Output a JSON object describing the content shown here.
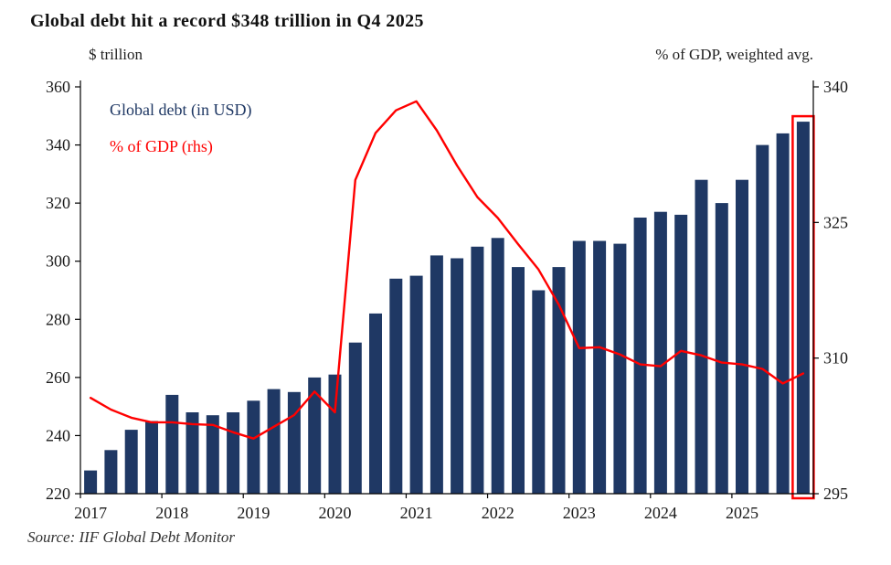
{
  "title": "Global debt hit a record $348 trillion in Q4 2025",
  "left_axis_label": "$ trillion",
  "right_axis_label": "% of GDP, weighted avg.",
  "legend": {
    "bars": "Global debt (in USD)",
    "line": "% of GDP (rhs)"
  },
  "source": "Source: IIF Global Debt Monitor",
  "colors": {
    "bar": "#1F3864",
    "line": "#FF0000",
    "highlight": "#FF0000",
    "axis": "#000000",
    "tick_text": "#1a1a1a"
  },
  "chart_data": {
    "type": "bar",
    "subtype": "bar+line combo, dual axis",
    "title": "Global debt hit a record $348 trillion in Q4 2025",
    "periods": [
      "2017Q1",
      "2017Q2",
      "2017Q3",
      "2017Q4",
      "2018Q1",
      "2018Q2",
      "2018Q3",
      "2018Q4",
      "2019Q1",
      "2019Q2",
      "2019Q3",
      "2019Q4",
      "2020Q1",
      "2020Q2",
      "2020Q3",
      "2020Q4",
      "2021Q1",
      "2021Q2",
      "2021Q3",
      "2021Q4",
      "2022Q1",
      "2022Q2",
      "2022Q3",
      "2022Q4",
      "2023Q1",
      "2023Q2",
      "2023Q3",
      "2023Q4",
      "2024Q1",
      "2024Q2",
      "2024Q3",
      "2024Q4",
      "2025Q1",
      "2025Q2",
      "2025Q3",
      "2025Q4"
    ],
    "series": [
      {
        "name": "Global debt (in USD)",
        "type": "bar",
        "axis": "left",
        "unit": "$ trillion",
        "values": [
          228,
          235,
          242,
          245,
          254,
          248,
          247,
          248,
          252,
          256,
          255,
          260,
          261,
          272,
          282,
          294,
          295,
          302,
          301,
          305,
          308,
          298,
          290,
          298,
          307,
          307,
          306,
          315,
          317,
          316,
          328,
          320,
          328,
          340,
          344,
          348
        ]
      },
      {
        "name": "% of GDP (rhs)",
        "type": "line",
        "axis": "right",
        "unit": "% of GDP, weighted avg.",
        "values": [
          305.6,
          304.3,
          303.4,
          302.9,
          302.9,
          302.7,
          302.6,
          301.8,
          301.1,
          302.4,
          303.7,
          306.3,
          304.0,
          329.7,
          334.9,
          337.4,
          338.4,
          335.2,
          331.3,
          327.8,
          325.5,
          322.6,
          319.8,
          315.9,
          311.1,
          311.2,
          310.4,
          309.3,
          309.1,
          310.8,
          310.3,
          309.5,
          309.3,
          308.8,
          307.2,
          308.3
        ]
      }
    ],
    "left_axis": {
      "min": 220,
      "max": 360,
      "ticks": [
        220,
        240,
        260,
        280,
        300,
        320,
        340,
        360
      ]
    },
    "right_axis": {
      "min": 295,
      "max": 340,
      "ticks": [
        295,
        310,
        325,
        340
      ]
    },
    "x_tick_labels": [
      "2017",
      "2018",
      "2019",
      "2020",
      "2021",
      "2022",
      "2023",
      "2024",
      "2025"
    ],
    "grid": false,
    "legend_position": "top-left inside plot",
    "highlight_last_bar": true
  }
}
